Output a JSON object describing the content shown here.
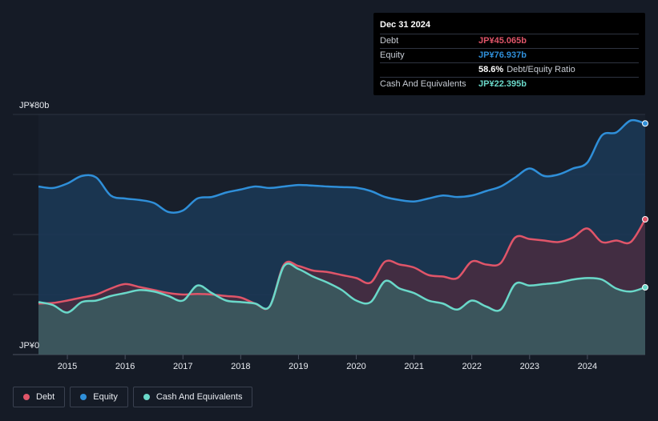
{
  "chart_data": {
    "type": "area",
    "ylim": [
      0,
      80
    ],
    "xlim": [
      2014.5,
      2025.0
    ],
    "y_tick_labels": [
      {
        "value": 80,
        "label": "JP¥80b"
      },
      {
        "value": 0,
        "label": "JP¥0"
      }
    ],
    "x_ticks": [
      2015,
      2016,
      2017,
      2018,
      2019,
      2020,
      2021,
      2022,
      2023,
      2024
    ],
    "grid": true,
    "series": [
      {
        "name": "Equity",
        "color": "#2f8fd9",
        "points": [
          [
            2014.5,
            56
          ],
          [
            2014.75,
            55.5
          ],
          [
            2015.0,
            57
          ],
          [
            2015.25,
            59.5
          ],
          [
            2015.5,
            59
          ],
          [
            2015.75,
            53
          ],
          [
            2016.0,
            52
          ],
          [
            2016.25,
            51.5
          ],
          [
            2016.5,
            50.5
          ],
          [
            2016.75,
            47.5
          ],
          [
            2017.0,
            48
          ],
          [
            2017.25,
            52
          ],
          [
            2017.5,
            52.5
          ],
          [
            2017.75,
            54
          ],
          [
            2018.0,
            55
          ],
          [
            2018.25,
            56
          ],
          [
            2018.5,
            55.5
          ],
          [
            2018.75,
            56
          ],
          [
            2019.0,
            56.5
          ],
          [
            2019.25,
            56.3
          ],
          [
            2019.5,
            56
          ],
          [
            2019.75,
            55.8
          ],
          [
            2020.0,
            55.6
          ],
          [
            2020.25,
            54.5
          ],
          [
            2020.5,
            52.5
          ],
          [
            2020.75,
            51.5
          ],
          [
            2021.0,
            51
          ],
          [
            2021.25,
            52
          ],
          [
            2021.5,
            53
          ],
          [
            2021.75,
            52.5
          ],
          [
            2022.0,
            53
          ],
          [
            2022.25,
            54.5
          ],
          [
            2022.5,
            56
          ],
          [
            2022.75,
            59
          ],
          [
            2023.0,
            62
          ],
          [
            2023.25,
            59.5
          ],
          [
            2023.5,
            60
          ],
          [
            2023.75,
            62
          ],
          [
            2024.0,
            64
          ],
          [
            2024.25,
            73
          ],
          [
            2024.5,
            74
          ],
          [
            2024.75,
            78
          ],
          [
            2025.0,
            77
          ]
        ]
      },
      {
        "name": "Debt",
        "color": "#e05569",
        "points": [
          [
            2014.5,
            17
          ],
          [
            2014.75,
            17.2
          ],
          [
            2015.0,
            18
          ],
          [
            2015.25,
            19
          ],
          [
            2015.5,
            20
          ],
          [
            2015.75,
            22
          ],
          [
            2016.0,
            23.5
          ],
          [
            2016.25,
            22.5
          ],
          [
            2016.5,
            21.5
          ],
          [
            2016.75,
            20.5
          ],
          [
            2017.0,
            20
          ],
          [
            2017.25,
            20.2
          ],
          [
            2017.5,
            20
          ],
          [
            2017.75,
            19.5
          ],
          [
            2018.0,
            19
          ],
          [
            2018.25,
            17
          ],
          [
            2018.5,
            16
          ],
          [
            2018.75,
            30
          ],
          [
            2019.0,
            29.5
          ],
          [
            2019.25,
            28
          ],
          [
            2019.5,
            27.5
          ],
          [
            2019.75,
            26.5
          ],
          [
            2020.0,
            25.5
          ],
          [
            2020.25,
            24
          ],
          [
            2020.5,
            31
          ],
          [
            2020.75,
            30
          ],
          [
            2021.0,
            29
          ],
          [
            2021.25,
            26.5
          ],
          [
            2021.5,
            26
          ],
          [
            2021.75,
            25.5
          ],
          [
            2022.0,
            31
          ],
          [
            2022.25,
            30
          ],
          [
            2022.5,
            30.5
          ],
          [
            2022.75,
            39
          ],
          [
            2023.0,
            38.5
          ],
          [
            2023.25,
            38
          ],
          [
            2023.5,
            37.5
          ],
          [
            2023.75,
            39
          ],
          [
            2024.0,
            42
          ],
          [
            2024.25,
            37.5
          ],
          [
            2024.5,
            38
          ],
          [
            2024.75,
            37.5
          ],
          [
            2025.0,
            45.065
          ]
        ]
      },
      {
        "name": "Cash And Equivalents",
        "color": "#6ad8c9",
        "points": [
          [
            2014.5,
            17.5
          ],
          [
            2014.75,
            16.5
          ],
          [
            2015.0,
            14
          ],
          [
            2015.25,
            17.5
          ],
          [
            2015.5,
            18
          ],
          [
            2015.75,
            19.5
          ],
          [
            2016.0,
            20.5
          ],
          [
            2016.25,
            21.5
          ],
          [
            2016.5,
            21
          ],
          [
            2016.75,
            19.5
          ],
          [
            2017.0,
            18
          ],
          [
            2017.25,
            23
          ],
          [
            2017.5,
            20.5
          ],
          [
            2017.75,
            18
          ],
          [
            2018.0,
            17.5
          ],
          [
            2018.25,
            17
          ],
          [
            2018.5,
            16
          ],
          [
            2018.75,
            29.5
          ],
          [
            2019.0,
            28.5
          ],
          [
            2019.25,
            26
          ],
          [
            2019.5,
            24
          ],
          [
            2019.75,
            21.5
          ],
          [
            2020.0,
            18
          ],
          [
            2020.25,
            17.5
          ],
          [
            2020.5,
            24.5
          ],
          [
            2020.75,
            22
          ],
          [
            2021.0,
            20.5
          ],
          [
            2021.25,
            18
          ],
          [
            2021.5,
            17
          ],
          [
            2021.75,
            15
          ],
          [
            2022.0,
            18
          ],
          [
            2022.25,
            16
          ],
          [
            2022.5,
            15
          ],
          [
            2022.75,
            23.5
          ],
          [
            2023.0,
            23
          ],
          [
            2023.25,
            23.5
          ],
          [
            2023.5,
            24
          ],
          [
            2023.75,
            25
          ],
          [
            2024.0,
            25.5
          ],
          [
            2024.25,
            25
          ],
          [
            2024.5,
            22
          ],
          [
            2024.75,
            21
          ],
          [
            2025.0,
            22.395
          ]
        ]
      }
    ]
  },
  "tooltip": {
    "date": "Dec 31 2024",
    "rows": [
      {
        "label": "Debt",
        "value": "JP¥45.065b",
        "color": "#e05569"
      },
      {
        "label": "Equity",
        "value": "JP¥76.937b",
        "color": "#2f8fd9"
      },
      {
        "label": "",
        "value": "58.6%",
        "extra": "Debt/Equity Ratio",
        "color": "#ffffff"
      },
      {
        "label": "Cash And Equivalents",
        "value": "JP¥22.395b",
        "color": "#6ad8c9"
      }
    ]
  },
  "legend": [
    {
      "label": "Debt",
      "color": "#e05569"
    },
    {
      "label": "Equity",
      "color": "#2f8fd9"
    },
    {
      "label": "Cash And Equivalents",
      "color": "#6ad8c9"
    }
  ],
  "colors": {
    "background": "#151b26",
    "equity_fill": "#1b3a57",
    "debt_fill": "#4a2c40",
    "cash_fill": "#3a5d60"
  }
}
